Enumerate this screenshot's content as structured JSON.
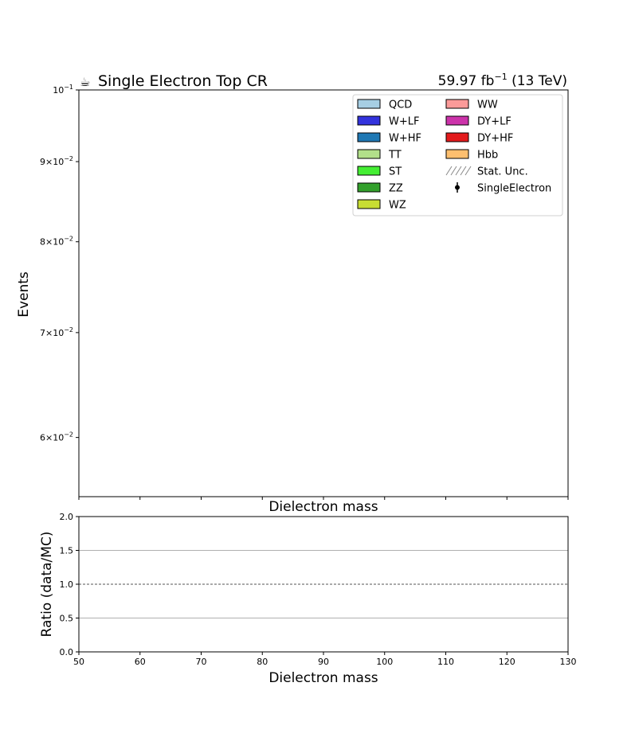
{
  "chart_data": [
    {
      "type": "area",
      "title_left": "Single Electron Top CR",
      "title_icon": "coffee-icon",
      "title_right": {
        "lumi": "59.97 fb",
        "exp": "−1",
        "energy": " (13 TeV)"
      },
      "ylabel": "Events",
      "xlabel": "Dielectron mass",
      "yscale": "log",
      "ylim": [
        0.055,
        0.1
      ],
      "xlim": [
        50,
        130
      ],
      "yticks": [
        {
          "value": 0.06,
          "mant": "6",
          "exp": "−2"
        },
        {
          "value": 0.07,
          "mant": "7",
          "exp": "−2"
        },
        {
          "value": 0.08,
          "mant": "8",
          "exp": "−2"
        },
        {
          "value": 0.09,
          "mant": "9",
          "exp": "−2"
        },
        {
          "value": 0.1,
          "mant": "",
          "exp": "−1"
        }
      ],
      "xticks": [
        50,
        60,
        70,
        80,
        90,
        100,
        110,
        120,
        130
      ],
      "legend_position": "top-right",
      "legend": [
        {
          "name": "QCD",
          "color": "#a6cee3",
          "kind": "patch"
        },
        {
          "name": "W+LF",
          "color": "#3333dd",
          "kind": "patch"
        },
        {
          "name": "W+HF",
          "color": "#1f78b4",
          "kind": "patch"
        },
        {
          "name": "TT",
          "color": "#b2df8a",
          "kind": "patch"
        },
        {
          "name": "ST",
          "color": "#44ee33",
          "kind": "patch"
        },
        {
          "name": "ZZ",
          "color": "#33a02c",
          "kind": "patch"
        },
        {
          "name": "WZ",
          "color": "#c8dd33",
          "kind": "patch"
        },
        {
          "name": "WW",
          "color": "#fb9a99",
          "kind": "patch"
        },
        {
          "name": "DY+LF",
          "color": "#cc33aa",
          "kind": "patch"
        },
        {
          "name": "DY+HF",
          "color": "#e31a1c",
          "kind": "patch"
        },
        {
          "name": "Hbb",
          "color": "#fdbf6f",
          "kind": "patch"
        },
        {
          "name": "Stat. Unc.",
          "color": "#888888",
          "kind": "hatch"
        },
        {
          "name": "SingleElectron",
          "color": "#000000",
          "kind": "errorbar"
        }
      ],
      "series": []
    },
    {
      "type": "line",
      "ylabel": "Ratio (data/MC)",
      "xlabel": "Dielectron mass",
      "xlim": [
        50,
        130
      ],
      "ylim": [
        0.0,
        2.0
      ],
      "yticks": [
        "0.0",
        "0.5",
        "1.0",
        "1.5",
        "2.0"
      ],
      "xticks": [
        "50",
        "60",
        "70",
        "80",
        "90",
        "100",
        "110",
        "120",
        "130"
      ],
      "grid": "horizontal",
      "reference_line": 1.0,
      "series": []
    }
  ]
}
